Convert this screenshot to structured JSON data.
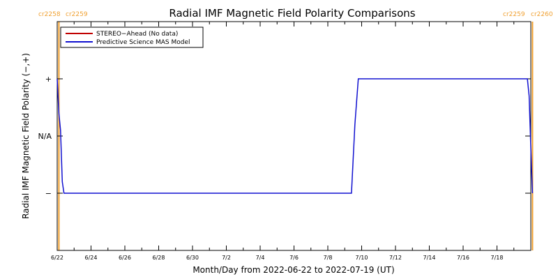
{
  "chart_data": {
    "type": "line",
    "title": "Radial IMF Magnetic Field Polarity Comparisons",
    "xlabel": "Month/Day from 2022-06-22 to 2022-07-19 (UT)",
    "ylabel": "Radial IMF Magnetic Field Polarity (−,+)",
    "x_range": [
      "2022-06-22",
      "2022-07-20"
    ],
    "y_categories": [
      "−",
      "N/A",
      "+"
    ],
    "y_category_values": [
      -1,
      0,
      1
    ],
    "ylim": [
      -2,
      2
    ],
    "x_tick_labels": [
      "6/22",
      "6/24",
      "6/26",
      "6/28",
      "6/30",
      "7/2",
      "7/4",
      "7/6",
      "7/8",
      "7/10",
      "7/12",
      "7/14",
      "7/16",
      "7/18"
    ],
    "x_tick_days": [
      0,
      2,
      4,
      6,
      8,
      10,
      12,
      14,
      16,
      18,
      20,
      22,
      24,
      26
    ],
    "legend": {
      "placement": "top-left",
      "entries": [
        "STEREO−Ahead (No data)",
        "Predictive Science MAS Model"
      ]
    },
    "series": [
      {
        "name": "STEREO−Ahead (No data)",
        "color": "#c00000",
        "points": []
      },
      {
        "name": "Predictive Science MAS Model",
        "color": "#1010d0",
        "points": [
          [
            0.0,
            1.0
          ],
          [
            0.1,
            0.4
          ],
          [
            0.2,
            0.1
          ],
          [
            0.3,
            -0.8
          ],
          [
            0.4,
            -1.0
          ],
          [
            17.4,
            -1.0
          ],
          [
            17.6,
            0.2
          ],
          [
            17.8,
            1.0
          ],
          [
            27.8,
            1.0
          ],
          [
            27.9,
            0.7
          ],
          [
            28.0,
            -0.2
          ],
          [
            28.1,
            -1.0
          ]
        ]
      }
    ],
    "carrington_rotations": {
      "color": "#f0a030",
      "labels_left": [
        "cr2258",
        "cr2259"
      ],
      "labels_right": [
        "cr2259",
        "cr2260"
      ],
      "boundary_days": [
        0.1,
        28.1
      ]
    }
  }
}
